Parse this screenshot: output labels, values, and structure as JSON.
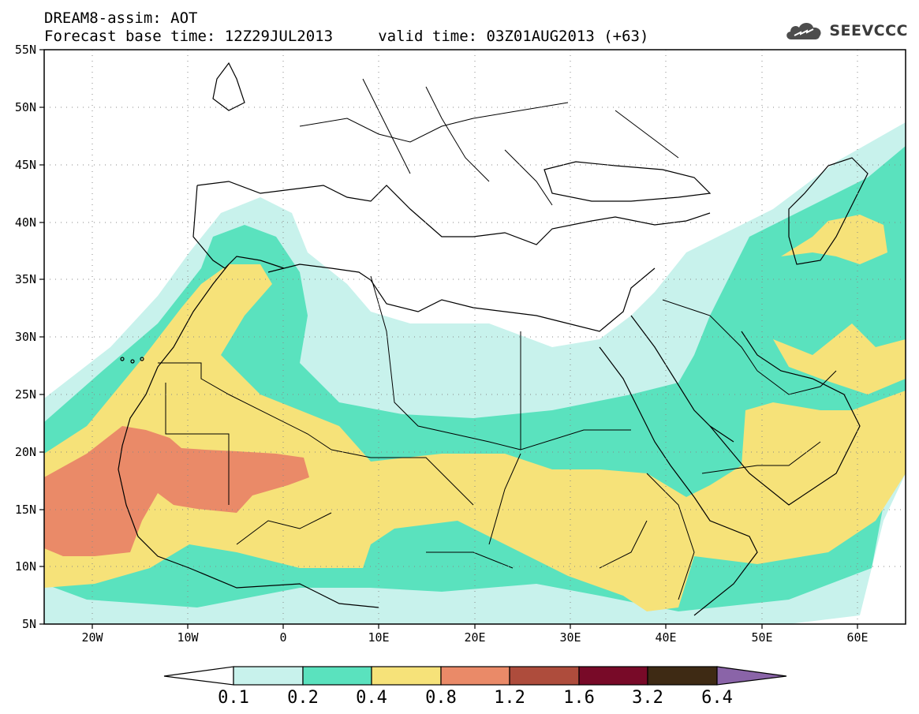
{
  "header": {
    "title_line1": "DREAM8-assim: AOT",
    "title_line2": "Forecast base time: 12Z29JUL2013     valid time: 03Z01AUG2013 (+63)",
    "brand": "SEEVCCC"
  },
  "map": {
    "lat_labels": [
      "55N",
      "50N",
      "45N",
      "40N",
      "35N",
      "30N",
      "25N",
      "20N",
      "15N",
      "10N",
      "5N"
    ],
    "lon_labels": [
      "20W",
      "10W",
      "0",
      "10E",
      "20E",
      "30E",
      "40E",
      "50E",
      "60E"
    ],
    "extent": {
      "lon_min": -25,
      "lon_max": 65,
      "lat_min": 5,
      "lat_max": 55
    }
  },
  "colorbar": {
    "labels": [
      "0.1",
      "0.2",
      "0.4",
      "0.8",
      "1.2",
      "1.6",
      "3.2",
      "6.4"
    ],
    "colors": [
      "#ffffff",
      "#c8f2ec",
      "#5ae2be",
      "#f6e279",
      "#ea8a68",
      "#ae4c3c",
      "#780a28",
      "#3e2a14",
      "#8a64a8"
    ]
  },
  "colors": {
    "aot_0_1_0_2": "#c8f2ec",
    "aot_0_2_0_4": "#5ae2be",
    "aot_0_4_0_8": "#f6e279",
    "aot_0_8_1_2": "#ea8a68"
  }
}
